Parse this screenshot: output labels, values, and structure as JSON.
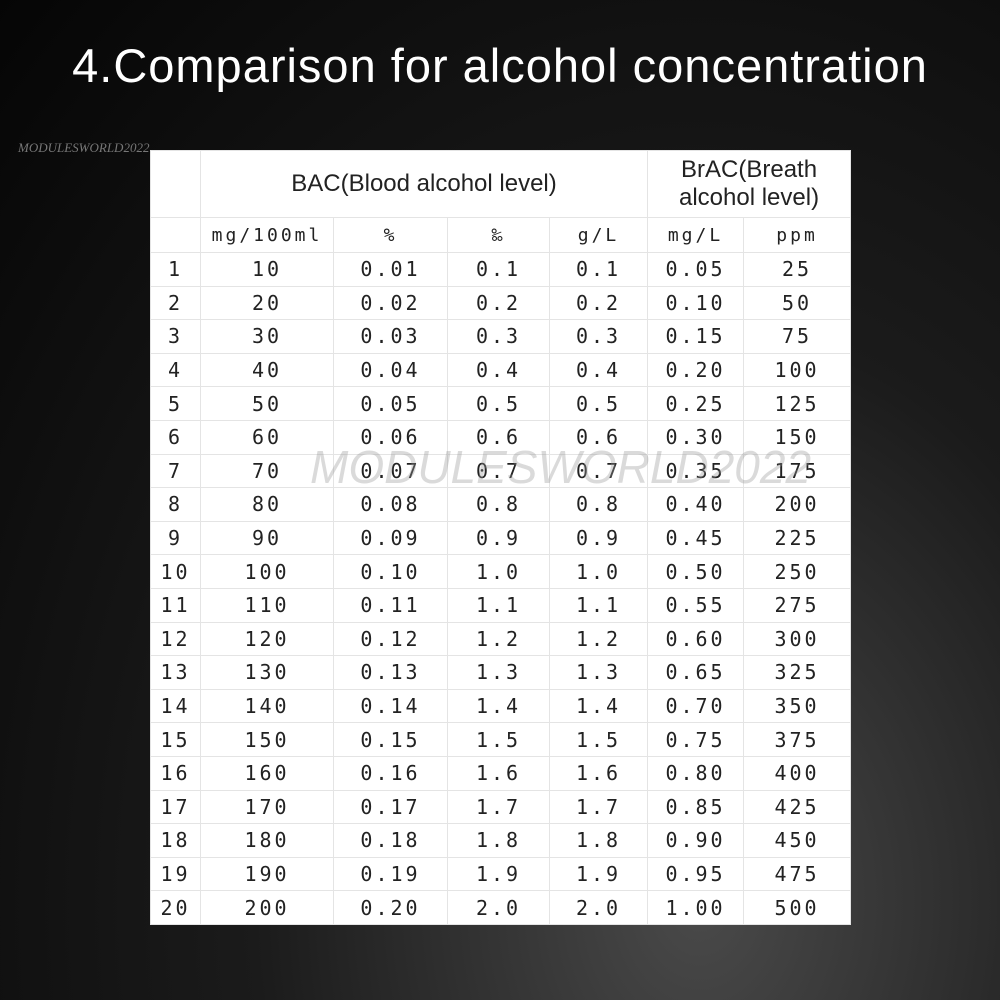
{
  "title": "4.Comparison for alcohol concentration",
  "watermark": "MODULESWORLD2022",
  "table": {
    "group_headers": [
      "BAC(Blood alcohol level)",
      "BrAC(Breath alcohol level)"
    ],
    "units": [
      "mg/100ml",
      "%",
      "‰",
      "g/L",
      "mg/L",
      "ppm"
    ],
    "rows": [
      [
        "1",
        "10",
        "0.01",
        "0.1",
        "0.1",
        "0.05",
        "25"
      ],
      [
        "2",
        "20",
        "0.02",
        "0.2",
        "0.2",
        "0.10",
        "50"
      ],
      [
        "3",
        "30",
        "0.03",
        "0.3",
        "0.3",
        "0.15",
        "75"
      ],
      [
        "4",
        "40",
        "0.04",
        "0.4",
        "0.4",
        "0.20",
        "100"
      ],
      [
        "5",
        "50",
        "0.05",
        "0.5",
        "0.5",
        "0.25",
        "125"
      ],
      [
        "6",
        "60",
        "0.06",
        "0.6",
        "0.6",
        "0.30",
        "150"
      ],
      [
        "7",
        "70",
        "0.07",
        "0.7",
        "0.7",
        "0.35",
        "175"
      ],
      [
        "8",
        "80",
        "0.08",
        "0.8",
        "0.8",
        "0.40",
        "200"
      ],
      [
        "9",
        "90",
        "0.09",
        "0.9",
        "0.9",
        "0.45",
        "225"
      ],
      [
        "10",
        "100",
        "0.10",
        "1.0",
        "1.0",
        "0.50",
        "250"
      ],
      [
        "11",
        "110",
        "0.11",
        "1.1",
        "1.1",
        "0.55",
        "275"
      ],
      [
        "12",
        "120",
        "0.12",
        "1.2",
        "1.2",
        "0.60",
        "300"
      ],
      [
        "13",
        "130",
        "0.13",
        "1.3",
        "1.3",
        "0.65",
        "325"
      ],
      [
        "14",
        "140",
        "0.14",
        "1.4",
        "1.4",
        "0.70",
        "350"
      ],
      [
        "15",
        "150",
        "0.15",
        "1.5",
        "1.5",
        "0.75",
        "375"
      ],
      [
        "16",
        "160",
        "0.16",
        "1.6",
        "1.6",
        "0.80",
        "400"
      ],
      [
        "17",
        "170",
        "0.17",
        "1.7",
        "1.7",
        "0.85",
        "425"
      ],
      [
        "18",
        "180",
        "0.18",
        "1.8",
        "1.8",
        "0.90",
        "450"
      ],
      [
        "19",
        "190",
        "0.19",
        "1.9",
        "1.9",
        "0.95",
        "475"
      ],
      [
        "20",
        "200",
        "0.20",
        "2.0",
        "2.0",
        "1.00",
        "500"
      ]
    ]
  }
}
